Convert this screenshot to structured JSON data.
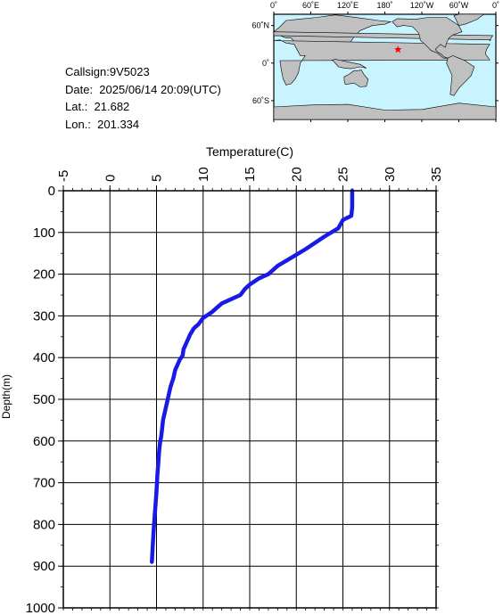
{
  "info": {
    "callsign": "Callsign:9V5023",
    "date": "Date:  2025/06/14 20:09(UTC)",
    "lat": "Lat.:  21.682",
    "lon": "Lon.:  201.334"
  },
  "map": {
    "lon_labels": [
      "0˚",
      "60˚E",
      "120˚E",
      "180˚",
      "120˚W",
      "60˚W",
      "0˚"
    ],
    "lat_labels": [
      "60˚N",
      "0˚",
      "60˚S"
    ],
    "station": {
      "lat": 21.682,
      "lon": 201.334
    },
    "ocean_color": "#c8f4ff",
    "land_color": "#c0c0c0",
    "marker_color": "#ff0000"
  },
  "chart_data": {
    "type": "line",
    "xlabel": "Temperature(C)",
    "ylabel": "Depth(m)",
    "xlim": [
      -5,
      35
    ],
    "ylim": [
      0,
      1000
    ],
    "y_inverted": true,
    "x_axis_position": "top",
    "grid": true,
    "x_ticks": [
      "-5",
      "0",
      "5",
      "10",
      "15",
      "20",
      "25",
      "30",
      "35"
    ],
    "y_ticks": [
      "0",
      "100",
      "200",
      "300",
      "400",
      "500",
      "600",
      "700",
      "800",
      "900",
      "1000"
    ],
    "line_color": "#1a1ae6",
    "series": [
      {
        "x": [
          26.0,
          26.0,
          25.9,
          25.0,
          24.5,
          23.0,
          22.0,
          21.0,
          19.5,
          18.0,
          17.5,
          17.0,
          16.0,
          15.0,
          14.5,
          14.0,
          13.0,
          12.0,
          11.5,
          11.0,
          10.0,
          9.5,
          9.0,
          8.6,
          8.3,
          8.1,
          7.9,
          7.8,
          7.5,
          7.0,
          6.8,
          6.5,
          6.3,
          6.1,
          5.9,
          5.7,
          5.6,
          5.5,
          5.4,
          5.3,
          5.2,
          5.1,
          5.0,
          4.9,
          4.8,
          4.7,
          4.6,
          4.5
        ],
        "y": [
          0,
          40,
          60,
          70,
          90,
          110,
          125,
          140,
          160,
          180,
          190,
          200,
          210,
          225,
          235,
          250,
          260,
          270,
          280,
          290,
          305,
          320,
          330,
          345,
          360,
          370,
          380,
          395,
          405,
          430,
          450,
          470,
          490,
          510,
          530,
          550,
          570,
          590,
          600,
          620,
          650,
          680,
          720,
          750,
          780,
          810,
          850,
          890
        ]
      }
    ]
  }
}
